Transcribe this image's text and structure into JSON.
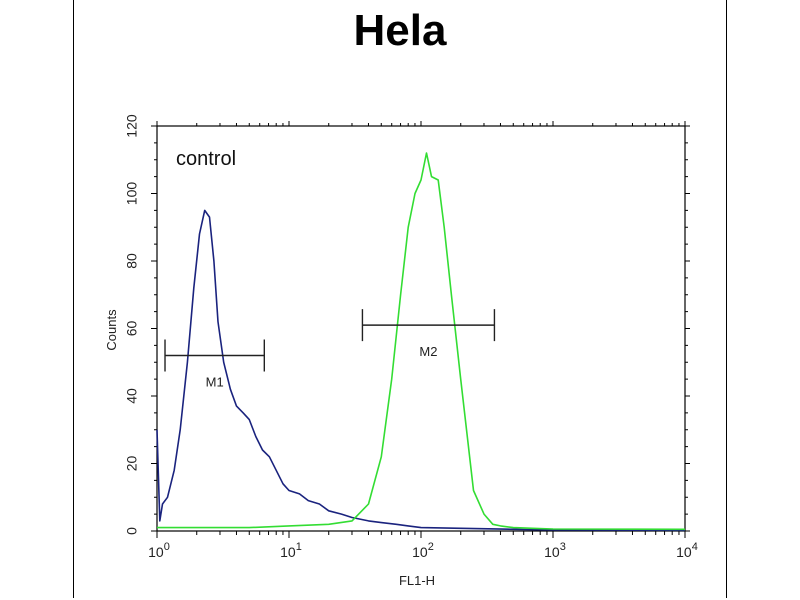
{
  "chart_data": {
    "type": "line",
    "title": "Hela",
    "xlabel": "FL1-H",
    "ylabel": "Counts",
    "x_scale": "log",
    "xlim": [
      1,
      10000
    ],
    "ylim": [
      0,
      120
    ],
    "y_ticks": [
      "0",
      "20",
      "40",
      "60",
      "80",
      "100",
      "120"
    ],
    "x_ticks": [
      {
        "base": "10",
        "exp": "0"
      },
      {
        "base": "10",
        "exp": "1"
      },
      {
        "base": "10",
        "exp": "2"
      },
      {
        "base": "10",
        "exp": "3"
      },
      {
        "base": "10",
        "exp": "4"
      }
    ],
    "grid": false,
    "series": [
      {
        "color": "#1a237e",
        "x": [
          1.0,
          1.05,
          1.1,
          1.2,
          1.35,
          1.5,
          1.7,
          1.9,
          2.1,
          2.3,
          2.5,
          2.7,
          2.9,
          3.2,
          3.6,
          4.0,
          4.5,
          5.0,
          5.6,
          6.3,
          7.1,
          8.0,
          9.0,
          10.0,
          12.0,
          14.0,
          17.0,
          20.0,
          25.0,
          30.0,
          40.0,
          50.0,
          65.0,
          80.0,
          100.0,
          200.0,
          500.0,
          1000.0,
          10000.0
        ],
        "values": [
          30,
          3,
          8,
          10,
          18,
          30,
          50,
          72,
          88,
          95,
          93,
          80,
          62,
          50,
          42,
          37,
          35,
          33,
          28,
          24,
          22,
          18,
          14,
          12,
          11,
          9,
          8,
          6,
          5,
          4,
          3,
          2.5,
          2,
          1.5,
          1,
          0.8,
          0.5,
          0.3,
          0.2
        ]
      },
      {
        "color": "#33dd33",
        "x": [
          1.0,
          5.0,
          10.0,
          20.0,
          30.0,
          40.0,
          50.0,
          60.0,
          70.0,
          80.0,
          90.0,
          100.0,
          110.0,
          120.0,
          135.0,
          150.0,
          170.0,
          200.0,
          250.0,
          300.0,
          350.0,
          400.0,
          500.0,
          700.0,
          1000.0,
          10000.0
        ],
        "values": [
          1,
          1,
          1.5,
          2,
          3,
          8,
          22,
          45,
          70,
          90,
          100,
          104,
          112,
          105,
          104,
          90,
          70,
          45,
          12,
          5,
          2,
          1.5,
          1,
          0.8,
          0.6,
          0.5
        ]
      }
    ],
    "annotations": {
      "control_label": "control",
      "gates": [
        {
          "label": "M1",
          "x_start": 1.15,
          "x_end": 6.5,
          "y": 52
        },
        {
          "label": "M2",
          "x_start": 36,
          "x_end": 360,
          "y": 61
        }
      ]
    }
  }
}
